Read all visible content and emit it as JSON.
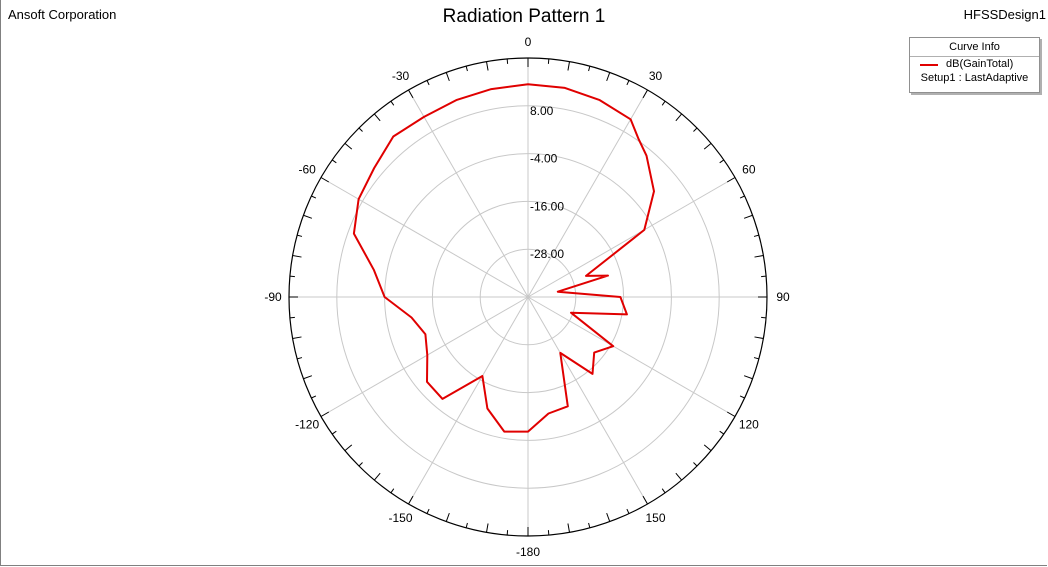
{
  "header": {
    "left": "Ansoft Corporation",
    "title": "Radiation Pattern 1",
    "right": "HFSSDesign1"
  },
  "legend": {
    "title": "Curve Info",
    "entries": [
      {
        "name": "dB(GainTotal)",
        "sub": "Setup1 : LastAdaptive",
        "color": "#e00000"
      }
    ]
  },
  "chart_data": {
    "type": "polar-line",
    "angle_unit": "deg",
    "zero_direction": "top",
    "angle_direction": "clockwise",
    "angle_labels": [
      0,
      30,
      60,
      90,
      120,
      150,
      -180,
      -150,
      -120,
      -90,
      -60,
      -30
    ],
    "r_min": -40,
    "r_max": 20,
    "ring_values": [
      -28,
      -16,
      -4,
      8
    ],
    "ring_labels": [
      "-28.00",
      "-16.00",
      "-4.00",
      "8.00"
    ],
    "grid": true,
    "legend_position": "top-right",
    "series": [
      {
        "name": "dB(GainTotal)",
        "color": "#e00000",
        "points": [
          [
            0,
            13.4
          ],
          [
            10,
            13.3
          ],
          [
            20,
            12.6
          ],
          [
            30,
            11.5
          ],
          [
            35,
            8.4
          ],
          [
            40,
            6.3
          ],
          [
            50,
            1.3
          ],
          [
            60,
            -6.3
          ],
          [
            70,
            -24.5
          ],
          [
            75,
            -19.2
          ],
          [
            80,
            -32.4
          ],
          [
            90,
            -16.8
          ],
          [
            100,
            -14.8
          ],
          [
            110,
            -28.5
          ],
          [
            120,
            -15.3
          ],
          [
            130,
            -18.3
          ],
          [
            140,
            -14.8
          ],
          [
            150,
            -23.8
          ],
          [
            160,
            -10.8
          ],
          [
            170,
            -10.3
          ],
          [
            180,
            -6.2
          ],
          [
            190,
            -5.7
          ],
          [
            200,
            -10.2
          ],
          [
            210,
            -17.1
          ],
          [
            220,
            -6.6
          ],
          [
            230,
            -6.9
          ],
          [
            240,
            -10.8
          ],
          [
            250,
            -12.6
          ],
          [
            260,
            -10.3
          ],
          [
            270,
            -4.0
          ],
          [
            280,
            -0.7
          ],
          [
            290,
            6.5
          ],
          [
            300,
            9.1
          ],
          [
            310,
            10.4
          ],
          [
            320,
            12.6
          ],
          [
            330,
            12.2
          ],
          [
            340,
            12.6
          ],
          [
            350,
            13.0
          ]
        ]
      }
    ]
  }
}
